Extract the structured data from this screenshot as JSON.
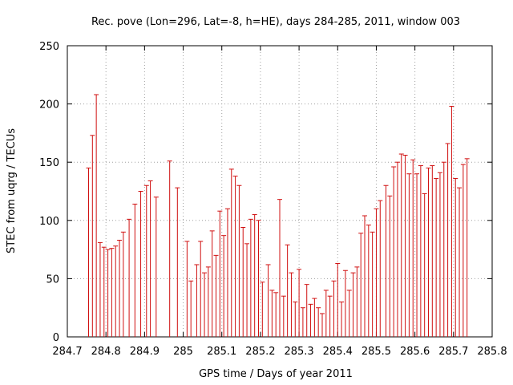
{
  "colors": {
    "series": "#d01010",
    "grid": "#a0a0a0",
    "frame": "#000000"
  },
  "chart_data": {
    "type": "scatter",
    "title": "Rec. pove (Lon=296, Lat=-8, h=HE), days 284-285, 2011, window 003",
    "xlabel": "GPS time / Days of year 2011",
    "ylabel": "STEC from uqrg / TECUs",
    "xlim": [
      284.7,
      285.8
    ],
    "ylim": [
      0,
      250
    ],
    "xticks": [
      284.7,
      284.8,
      284.9,
      285.0,
      285.1,
      285.2,
      285.3,
      285.4,
      285.5,
      285.6,
      285.7,
      285.8
    ],
    "xtick_labels": [
      "284.7",
      "284.8",
      "284.9",
      "285",
      "285.1",
      "285.2",
      "285.3",
      "285.4",
      "285.5",
      "285.6",
      "285.7",
      "285.8"
    ],
    "yticks": [
      0,
      50,
      100,
      150,
      200,
      250
    ],
    "ytick_labels": [
      "0",
      "50",
      "100",
      "150",
      "200",
      "250"
    ],
    "grid": true,
    "legend": "none",
    "error_bars_from_zero": true,
    "series": [
      {
        "x": [
          284.755,
          284.765,
          284.775,
          284.785,
          284.795,
          284.805,
          284.815,
          284.825,
          284.835,
          284.845,
          284.86,
          284.875,
          284.89,
          284.905,
          284.915,
          284.93,
          284.965,
          284.985,
          285.01,
          285.02,
          285.035,
          285.045,
          285.055,
          285.065,
          285.075,
          285.085,
          285.095,
          285.105,
          285.115,
          285.125,
          285.135,
          285.145,
          285.155,
          285.165,
          285.175,
          285.185,
          285.195,
          285.205,
          285.22,
          285.23,
          285.24,
          285.25,
          285.26,
          285.27,
          285.28,
          285.29,
          285.3,
          285.31,
          285.32,
          285.33,
          285.34,
          285.35,
          285.36,
          285.37,
          285.38,
          285.39,
          285.4,
          285.41,
          285.42,
          285.43,
          285.44,
          285.45,
          285.46,
          285.47,
          285.48,
          285.49,
          285.5,
          285.51,
          285.525,
          285.535,
          285.545,
          285.555,
          285.565,
          285.575,
          285.585,
          285.595,
          285.605,
          285.615,
          285.625,
          285.635,
          285.645,
          285.655,
          285.665,
          285.675,
          285.685,
          285.695,
          285.705,
          285.715,
          285.725,
          285.735
        ],
        "y": [
          145,
          173,
          208,
          81,
          77,
          75,
          76,
          78,
          83,
          90,
          101,
          114,
          125,
          130,
          134,
          120,
          151,
          128,
          82,
          48,
          62,
          82,
          55,
          60,
          91,
          70,
          108,
          87,
          110,
          144,
          138,
          130,
          94,
          80,
          101,
          105,
          100,
          47,
          62,
          40,
          38,
          118,
          35,
          79,
          55,
          30,
          58,
          25,
          45,
          28,
          33,
          25,
          20,
          40,
          35,
          48,
          63,
          30,
          57,
          40,
          55,
          60,
          89,
          104,
          96,
          90,
          110,
          117,
          130,
          121,
          146,
          150,
          157,
          156,
          140,
          152,
          140,
          147,
          123,
          145,
          147,
          136,
          141,
          150,
          166,
          198,
          136,
          128,
          148,
          153
        ]
      }
    ]
  }
}
